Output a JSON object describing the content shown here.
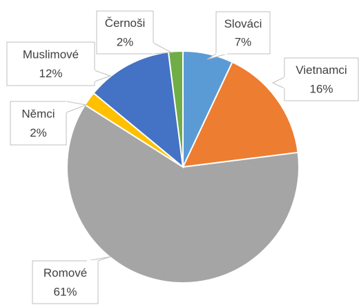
{
  "chart_data": {
    "type": "pie",
    "categories": [
      "Slováci",
      "Vietnamci",
      "Romové",
      "Němci",
      "Muslimové",
      "Černoši"
    ],
    "values": [
      7,
      16,
      61,
      2,
      12,
      2
    ],
    "value_labels": [
      "7%",
      "16%",
      "61%",
      "2%",
      "12%",
      "2%"
    ],
    "colors": [
      "#5b9bd5",
      "#ed7d31",
      "#a5a5a5",
      "#ffc000",
      "#4472c4",
      "#70ad47"
    ]
  }
}
